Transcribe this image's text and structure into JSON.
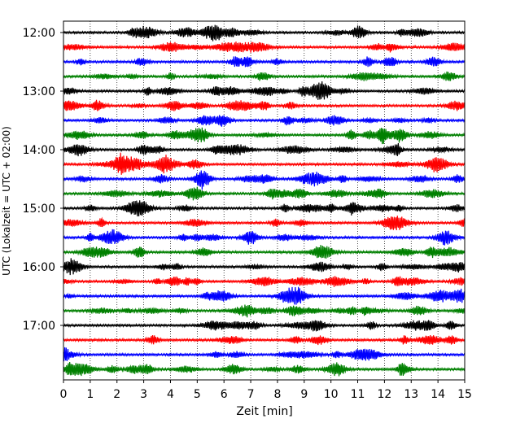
{
  "chart_data": {
    "type": "line",
    "title": "",
    "xlabel": "Zeit  [min]",
    "ylabel": "UTC (Lokalzeit = UTC + 02:00)",
    "xlim": [
      0,
      15
    ],
    "x_ticks": [
      "0",
      "1",
      "2",
      "3",
      "4",
      "5",
      "6",
      "7",
      "8",
      "9",
      "10",
      "11",
      "12",
      "13",
      "14",
      "15"
    ],
    "y_tick_labels": [
      "12:00",
      "13:00",
      "14:00",
      "15:00",
      "16:00",
      "17:00"
    ],
    "trace_start_times": [
      "12:00",
      "12:15",
      "12:30",
      "12:45",
      "13:00",
      "13:15",
      "13:30",
      "13:45",
      "14:00",
      "14:15",
      "14:30",
      "14:45",
      "15:00",
      "15:15",
      "15:30",
      "15:45",
      "16:00",
      "16:15",
      "16:30",
      "16:45",
      "17:00",
      "17:15",
      "17:30",
      "17:45"
    ],
    "trace_minutes": 15,
    "color_cycle": [
      "#000000",
      "#ff0000",
      "#0000ff",
      "#008000"
    ],
    "grid": {
      "vertical_dotted": true,
      "horizontal": false
    },
    "legend": "none"
  }
}
